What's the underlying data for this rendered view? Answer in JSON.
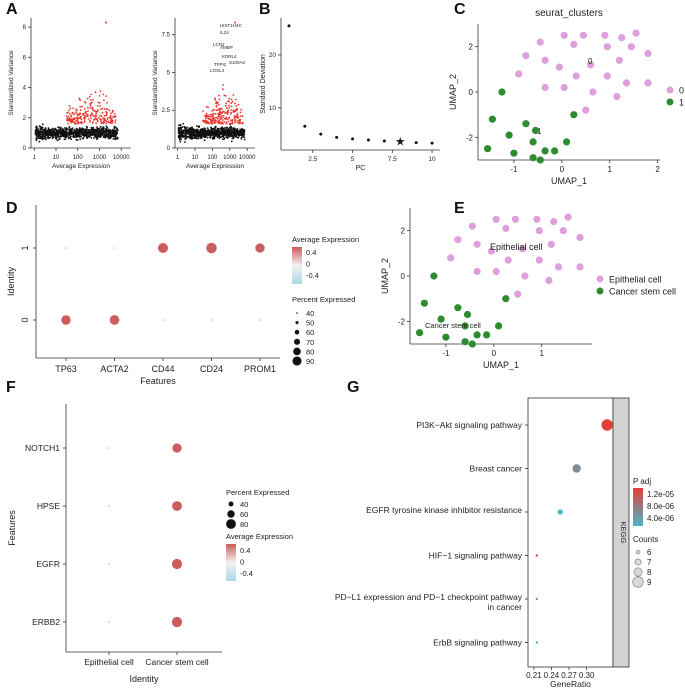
{
  "figure": {
    "panel_labels": [
      "A",
      "B",
      "C",
      "D",
      "E",
      "F",
      "G"
    ],
    "colors": {
      "red": "#e8382f",
      "black": "#111111",
      "pink": "#dda0dd",
      "green": "#2e8b2e",
      "axis": "#333333",
      "kegg_strip": "#d3d3d3"
    }
  },
  "chart_data": [
    {
      "id": "A1",
      "type": "scatter",
      "xlabel": "Average Expression",
      "ylabel": "Standardized Variance",
      "xticks": [
        "1",
        "10",
        "100",
        "1000",
        "10000"
      ],
      "yticks": [
        0,
        2,
        4,
        6,
        8
      ],
      "ylim": [
        0,
        8.6
      ],
      "legend": [],
      "labels": []
    },
    {
      "id": "A2",
      "type": "scatter",
      "xlabel": "Average Expression",
      "ylabel": "Standardized Variance",
      "xticks": [
        "1",
        "10",
        "100",
        "1000",
        "10000"
      ],
      "yticks": [
        0.0,
        2.5,
        5.0,
        7.5
      ],
      "ylim": [
        0,
        8.6
      ],
      "labels": [
        "HIST1H4C",
        "IL24",
        "LCN2",
        "AMBP",
        "KDRL4",
        "TFPI2",
        "S100A2",
        "LOXL4"
      ]
    },
    {
      "id": "B",
      "type": "scatter",
      "title": "",
      "xlabel": "PC",
      "ylabel": "Standard Deviation",
      "xticks": [
        2.5,
        5.0,
        7.5,
        10.0
      ],
      "yticks": [
        10,
        20
      ],
      "xlim": [
        0.5,
        10.5
      ],
      "ylim": [
        2,
        27
      ],
      "x": [
        1,
        2,
        3,
        4,
        5,
        6,
        7,
        8,
        9,
        10
      ],
      "y": [
        25.5,
        6.5,
        5.0,
        4.4,
        4.1,
        3.9,
        3.7,
        3.6,
        3.4,
        3.3
      ],
      "highlight_index": 7
    },
    {
      "id": "C",
      "type": "scatter",
      "title": "seurat_clusters",
      "xlabel": "UMAP_1",
      "ylabel": "UMAP_2",
      "xticks": [
        -1,
        0,
        1,
        2
      ],
      "yticks": [
        -2,
        0,
        2
      ],
      "xlim": [
        -1.75,
        2.05
      ],
      "ylim": [
        -3.0,
        3.0
      ],
      "legend": [
        "0",
        "1"
      ],
      "cluster_labels": [
        "0",
        "1"
      ],
      "series": [
        {
          "name": "0",
          "points": [
            [
              0.05,
              2.5
            ],
            [
              0.45,
              2.5
            ],
            [
              0.9,
              2.5
            ],
            [
              1.25,
              2.4
            ],
            [
              1.55,
              2.6
            ],
            [
              -0.45,
              2.2
            ],
            [
              0.25,
              2.1
            ],
            [
              0.95,
              2.0
            ],
            [
              1.45,
              2.0
            ],
            [
              1.8,
              1.7
            ],
            [
              -0.75,
              1.6
            ],
            [
              0.6,
              1.2
            ],
            [
              1.2,
              1.4
            ],
            [
              -0.35,
              1.4
            ],
            [
              -0.05,
              1.1
            ],
            [
              -0.9,
              0.8
            ],
            [
              0.3,
              0.7
            ],
            [
              0.95,
              0.7
            ],
            [
              1.35,
              0.4
            ],
            [
              1.8,
              0.4
            ],
            [
              0.05,
              0.2
            ],
            [
              0.65,
              0.0
            ],
            [
              1.15,
              -0.2
            ],
            [
              -0.35,
              0.2
            ],
            [
              0.5,
              -0.8
            ]
          ]
        },
        {
          "name": "1",
          "points": [
            [
              -1.25,
              0.0
            ],
            [
              -1.45,
              -1.2
            ],
            [
              -1.55,
              -2.5
            ],
            [
              -1.1,
              -1.9
            ],
            [
              -1.0,
              -2.7
            ],
            [
              -0.75,
              -1.4
            ],
            [
              -0.6,
              -2.2
            ],
            [
              -0.55,
              -1.7
            ],
            [
              -0.45,
              -3.0
            ],
            [
              -0.15,
              -2.6
            ],
            [
              0.1,
              -2.2
            ],
            [
              -0.35,
              -2.6
            ],
            [
              0.25,
              -1.0
            ],
            [
              -0.6,
              -2.9
            ]
          ]
        }
      ]
    },
    {
      "id": "D",
      "type": "scatter",
      "xlabel": "Features",
      "ylabel": "Identity",
      "categories": [
        "TP63",
        "ACTA2",
        "CD44",
        "CD24",
        "PROM1"
      ],
      "rows": [
        "1",
        "0"
      ],
      "legend_titles": [
        "Average Expression",
        "Percent Expressed"
      ],
      "color_ticks": [
        0.4,
        0.0,
        -0.4
      ],
      "color_range": [
        -0.6,
        0.6
      ],
      "size_ticks": [
        40,
        50,
        60,
        70,
        80,
        90
      ],
      "points": [
        {
          "row": "1",
          "feature": "TP63",
          "pct": 1,
          "avg": 0.3
        },
        {
          "row": "1",
          "feature": "ACTA2",
          "pct": 1,
          "avg": 0.3
        },
        {
          "row": "1",
          "feature": "CD44",
          "pct": 80,
          "avg": 0.6
        },
        {
          "row": "1",
          "feature": "CD24",
          "pct": 88,
          "avg": 0.6
        },
        {
          "row": "1",
          "feature": "PROM1",
          "pct": 66,
          "avg": 0.6
        },
        {
          "row": "0",
          "feature": "TP63",
          "pct": 68,
          "avg": 0.6
        },
        {
          "row": "0",
          "feature": "ACTA2",
          "pct": 72,
          "avg": 0.6
        },
        {
          "row": "0",
          "feature": "CD44",
          "pct": 1,
          "avg": 0.3
        },
        {
          "row": "0",
          "feature": "CD24",
          "pct": 1,
          "avg": 0.3
        },
        {
          "row": "0",
          "feature": "PROM1",
          "pct": 1,
          "avg": 0.3
        }
      ]
    },
    {
      "id": "E",
      "type": "scatter",
      "xlabel": "UMAP_1",
      "ylabel": "UMAP_2",
      "xticks": [
        -1,
        0,
        1
      ],
      "yticks": [
        -2,
        0,
        2
      ],
      "xlim": [
        -1.75,
        2.05
      ],
      "ylim": [
        -3.0,
        3.0
      ],
      "legend": [
        "Epithelial cell",
        "Cancer stem cell"
      ],
      "cluster_labels": [
        "Epithelial cell",
        "Cancer stem cell"
      ],
      "series": [
        {
          "name": "Epithelial cell",
          "points": [
            [
              0.05,
              2.5
            ],
            [
              0.45,
              2.5
            ],
            [
              0.9,
              2.5
            ],
            [
              1.25,
              2.4
            ],
            [
              1.55,
              2.6
            ],
            [
              -0.45,
              2.2
            ],
            [
              0.25,
              2.1
            ],
            [
              0.95,
              2.0
            ],
            [
              1.45,
              2.0
            ],
            [
              1.8,
              1.7
            ],
            [
              -0.75,
              1.6
            ],
            [
              0.6,
              1.2
            ],
            [
              1.2,
              1.4
            ],
            [
              -0.35,
              1.4
            ],
            [
              -0.05,
              1.1
            ],
            [
              -0.9,
              0.8
            ],
            [
              0.3,
              0.7
            ],
            [
              0.95,
              0.7
            ],
            [
              1.35,
              0.4
            ],
            [
              1.8,
              0.4
            ],
            [
              0.05,
              0.2
            ],
            [
              0.65,
              0.0
            ],
            [
              1.15,
              -0.2
            ],
            [
              -0.35,
              0.2
            ],
            [
              0.5,
              -0.8
            ]
          ]
        },
        {
          "name": "Cancer stem cell",
          "points": [
            [
              -1.25,
              0.0
            ],
            [
              -1.45,
              -1.2
            ],
            [
              -1.55,
              -2.5
            ],
            [
              -1.1,
              -1.9
            ],
            [
              -1.0,
              -2.7
            ],
            [
              -0.75,
              -1.4
            ],
            [
              -0.6,
              -2.2
            ],
            [
              -0.55,
              -1.7
            ],
            [
              -0.45,
              -3.0
            ],
            [
              -0.15,
              -2.6
            ],
            [
              0.1,
              -2.2
            ],
            [
              -0.35,
              -2.6
            ],
            [
              0.25,
              -1.0
            ],
            [
              -0.6,
              -2.9
            ]
          ]
        }
      ]
    },
    {
      "id": "F",
      "type": "scatter",
      "xlabel": "Identity",
      "ylabel": "Features",
      "categories": [
        "Epithelial cell",
        "Cancer stem cell"
      ],
      "rows": [
        "NOTCH1",
        "HPSE",
        "EGFR",
        "ERBB2"
      ],
      "legend_titles": [
        "Percent Expressed",
        "Average Expression"
      ],
      "size_ticks": [
        40,
        60,
        80
      ],
      "color_ticks": [
        0.4,
        0.0,
        -0.4
      ],
      "color_range": [
        -0.6,
        0.6
      ],
      "points": [
        {
          "row": "NOTCH1",
          "cell": "Epithelial cell",
          "pct": 1,
          "avg": 0.3
        },
        {
          "row": "NOTCH1",
          "cell": "Cancer stem cell",
          "pct": 65,
          "avg": 0.6
        },
        {
          "row": "HPSE",
          "cell": "Epithelial cell",
          "pct": 3,
          "avg": 0.3
        },
        {
          "row": "HPSE",
          "cell": "Cancer stem cell",
          "pct": 75,
          "avg": 0.6
        },
        {
          "row": "EGFR",
          "cell": "Epithelial cell",
          "pct": 3,
          "avg": 0.3
        },
        {
          "row": "EGFR",
          "cell": "Cancer stem cell",
          "pct": 82,
          "avg": 0.6
        },
        {
          "row": "ERBB2",
          "cell": "Epithelial cell",
          "pct": 1,
          "avg": 0.3
        },
        {
          "row": "ERBB2",
          "cell": "Cancer stem cell",
          "pct": 84,
          "avg": 0.6
        }
      ]
    },
    {
      "id": "G",
      "type": "scatter",
      "xlabel": "GeneRatio",
      "strip_label": "KEGG",
      "xticks": [
        "0.21",
        "0.24",
        "0.27",
        "0.30"
      ],
      "xlim": [
        0.2,
        0.345
      ],
      "legend_titles": [
        "P adj",
        "Counts"
      ],
      "color_ticks": [
        "1.2e-05",
        "8.0e-06",
        "4.0e-06"
      ],
      "count_ticks": [
        6,
        7,
        8,
        9
      ],
      "pathways": [
        {
          "name": "PI3K−Akt signaling pathway",
          "ratio": 0.335,
          "count": 9,
          "padj": 1.3e-05
        },
        {
          "name": "Breast cancer",
          "ratio": 0.283,
          "count": 8,
          "padj": 6.5e-06
        },
        {
          "name": "EGFR tyrosine kinase inhibitor resistance",
          "ratio": 0.255,
          "count": 7,
          "padj": 3e-06
        },
        {
          "name": "HIF−1 signaling pathway",
          "ratio": 0.215,
          "count": 6,
          "padj": 1.2e-05
        },
        {
          "name": "PD−L1 expression and PD−1 checkpoint pathway in cancer",
          "ratio": 0.215,
          "count": 6,
          "padj": 5e-06
        },
        {
          "name": "ErbB signaling pathway",
          "ratio": 0.215,
          "count": 6,
          "padj": 4e-06
        }
      ]
    }
  ]
}
